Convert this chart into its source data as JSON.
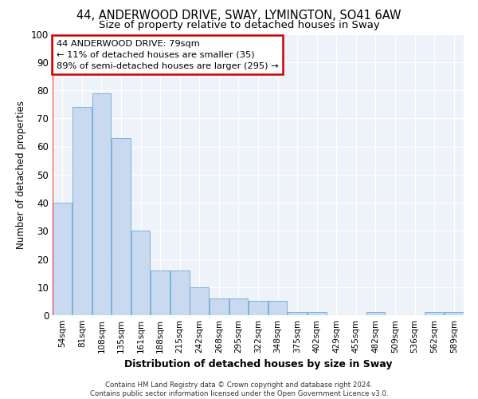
{
  "title": "44, ANDERWOOD DRIVE, SWAY, LYMINGTON, SO41 6AW",
  "subtitle": "Size of property relative to detached houses in Sway",
  "xlabel": "Distribution of detached houses by size in Sway",
  "ylabel": "Number of detached properties",
  "categories": [
    "54sqm",
    "81sqm",
    "108sqm",
    "135sqm",
    "161sqm",
    "188sqm",
    "215sqm",
    "242sqm",
    "268sqm",
    "295sqm",
    "322sqm",
    "348sqm",
    "375sqm",
    "402sqm",
    "429sqm",
    "455sqm",
    "482sqm",
    "509sqm",
    "536sqm",
    "562sqm",
    "589sqm"
  ],
  "values": [
    40,
    74,
    79,
    63,
    30,
    16,
    16,
    10,
    6,
    6,
    5,
    5,
    1,
    1,
    0,
    0,
    1,
    0,
    0,
    1,
    1
  ],
  "bar_color": "#c8d9f0",
  "bar_edge_color": "#6aaad4",
  "annotation_text": "44 ANDERWOOD DRIVE: 79sqm\n← 11% of detached houses are smaller (35)\n89% of semi-detached houses are larger (295) →",
  "annotation_box_color": "#ffffff",
  "annotation_box_edge": "#cc0000",
  "footnote": "Contains HM Land Registry data © Crown copyright and database right 2024.\nContains public sector information licensed under the Open Government Licence v3.0.",
  "ylim": [
    0,
    100
  ],
  "background_color": "#eef2f9",
  "grid_color": "#ffffff",
  "title_fontsize": 10.5,
  "subtitle_fontsize": 9.5,
  "tick_fontsize": 7.5,
  "ylabel_fontsize": 8.5,
  "xlabel_fontsize": 9
}
